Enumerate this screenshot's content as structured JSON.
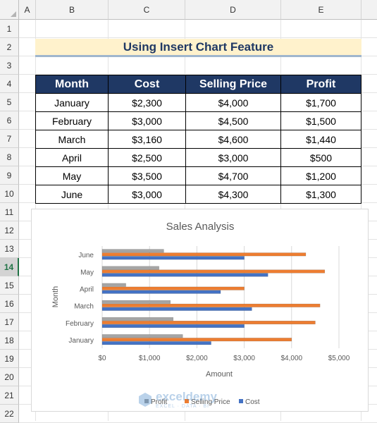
{
  "columns": [
    "A",
    "B",
    "C",
    "D",
    "E"
  ],
  "rows": [
    "1",
    "2",
    "3",
    "4",
    "5",
    "6",
    "7",
    "8",
    "9",
    "10",
    "11",
    "12",
    "13",
    "14",
    "15",
    "16",
    "17",
    "18",
    "19",
    "20",
    "21",
    "22"
  ],
  "selected_row": "14",
  "sheet_title": "Using Insert Chart Feature",
  "table": {
    "headers": [
      "Month",
      "Cost",
      "Selling Price",
      "Profit"
    ],
    "rows": [
      [
        "January",
        "$2,300",
        "$4,000",
        "$1,700"
      ],
      [
        "February",
        "$3,000",
        "$4,500",
        "$1,500"
      ],
      [
        "March",
        "$3,160",
        "$4,600",
        "$1,440"
      ],
      [
        "April",
        "$2,500",
        "$3,000",
        "$500"
      ],
      [
        "May",
        "$3,500",
        "$4,700",
        "$1,200"
      ],
      [
        "June",
        "$3,000",
        "$4,300",
        "$1,300"
      ]
    ]
  },
  "chart_data": {
    "type": "bar",
    "orientation": "horizontal",
    "title": "Sales Analysis",
    "xlabel": "Amount",
    "ylabel": "Month",
    "categories": [
      "January",
      "February",
      "March",
      "April",
      "May",
      "June"
    ],
    "series": [
      {
        "name": "Profit",
        "values": [
          1700,
          1500,
          1440,
          500,
          1200,
          1300
        ],
        "color": "#a5a5a5"
      },
      {
        "name": "Selling Price",
        "values": [
          4000,
          4500,
          4600,
          3000,
          4700,
          4300
        ],
        "color": "#ed7d31"
      },
      {
        "name": "Cost",
        "values": [
          2300,
          3000,
          3160,
          2500,
          3500,
          3000
        ],
        "color": "#4472c4"
      }
    ],
    "xlim": [
      0,
      5000
    ],
    "x_ticks": [
      0,
      1000,
      2000,
      3000,
      4000,
      5000
    ],
    "x_tick_labels": [
      "$0",
      "$1,000",
      "$2,000",
      "$3,000",
      "$4,000",
      "$5,000"
    ],
    "grid": "vertical",
    "legend": "bottom"
  },
  "watermark": {
    "name": "exceldemy",
    "tagline": "EXCEL · DATA · BI"
  }
}
